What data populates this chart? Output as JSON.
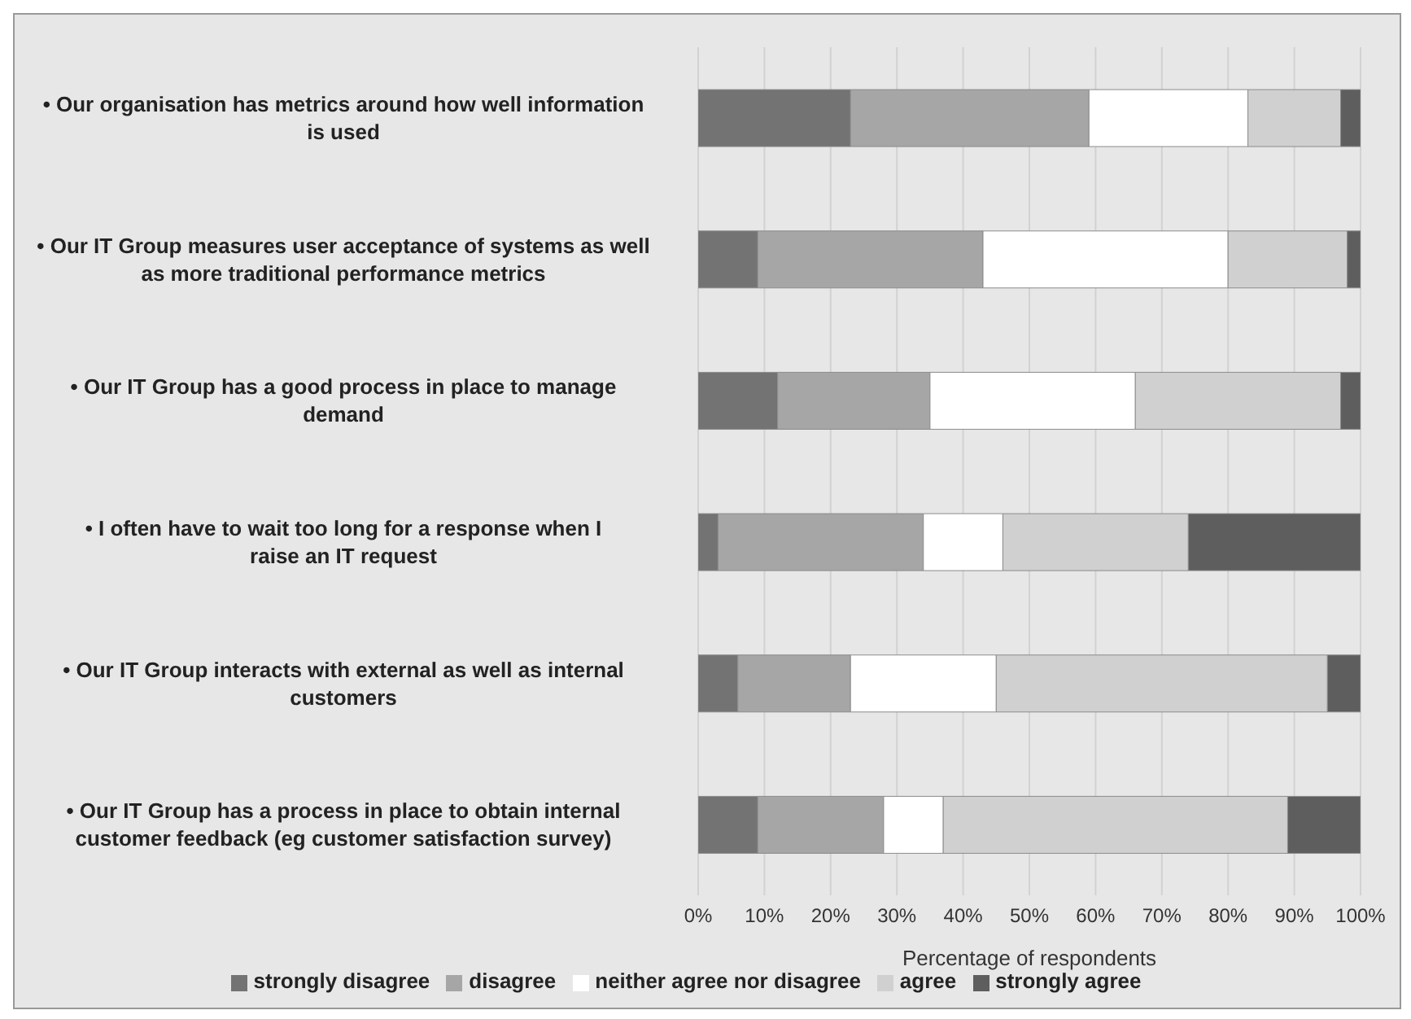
{
  "chart_data": {
    "type": "bar",
    "orientation": "horizontal",
    "stacked": true,
    "xlabel": "Percentage of respondents",
    "categories": [
      "• Our organisation has metrics around how well information is used",
      "• Our IT Group measures user acceptance of systems as well as more traditional performance metrics",
      "• Our IT Group has a good process in place to manage demand",
      "• I often have to wait too long for a response when I raise an IT request",
      "• Our IT Group interacts with external as well as internal customers",
      "• Our IT Group has a process in place to obtain internal customer feedback (eg customer satisfaction survey)"
    ],
    "series": [
      {
        "name": "strongly disagree",
        "color": "#737373",
        "values": [
          23,
          9,
          12,
          3,
          6,
          9
        ]
      },
      {
        "name": "disagree",
        "color": "#a6a6a6",
        "values": [
          36,
          34,
          23,
          31,
          17,
          19
        ]
      },
      {
        "name": "neither agree nor disagree",
        "color": "#ffffff",
        "values": [
          24,
          37,
          31,
          12,
          22,
          9
        ]
      },
      {
        "name": "agree",
        "color": "#d0d0d0",
        "values": [
          14,
          18,
          31,
          28,
          50,
          52
        ]
      },
      {
        "name": "strongly agree",
        "color": "#5e5e5e",
        "values": [
          3,
          2,
          3,
          26,
          5,
          11
        ]
      }
    ],
    "xlim": [
      0,
      100
    ],
    "xticks": [
      {
        "value": 0,
        "label": "0%"
      },
      {
        "value": 10,
        "label": "10%"
      },
      {
        "value": 20,
        "label": "20%"
      },
      {
        "value": 30,
        "label": "30%"
      },
      {
        "value": 40,
        "label": "40%"
      },
      {
        "value": 50,
        "label": "50%"
      },
      {
        "value": 60,
        "label": "60%"
      },
      {
        "value": 70,
        "label": "70%"
      },
      {
        "value": 80,
        "label": "80%"
      },
      {
        "value": 90,
        "label": "90%"
      },
      {
        "value": 100,
        "label": "100%"
      }
    ],
    "grid": "x",
    "legend": "bottom"
  }
}
